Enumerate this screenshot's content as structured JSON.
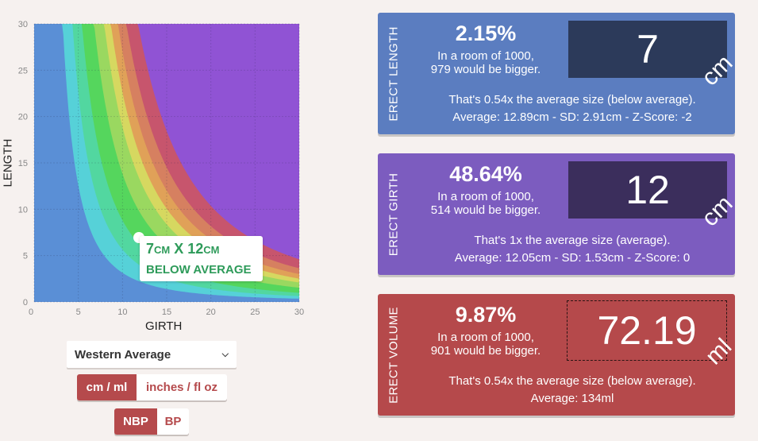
{
  "chart_data": {
    "type": "area",
    "x_ticks": [
      "0",
      "5",
      "10",
      "15",
      "20",
      "25",
      "30"
    ],
    "y_ticks": [
      "0",
      "5",
      "10",
      "15",
      "20",
      "25",
      "30"
    ],
    "xlabel": "GIRTH",
    "ylabel": "LENGTH",
    "xlim": [
      0,
      30
    ],
    "ylim": [
      0,
      30
    ],
    "grid": true,
    "bands": [
      {
        "color": "#5a8fd6",
        "volume_min": 0
      },
      {
        "color": "#56d1d8",
        "volume_min": 25
      },
      {
        "color": "#52d7a0",
        "volume_min": 45
      },
      {
        "color": "#55d65d",
        "volume_min": 70
      },
      {
        "color": "#9ad860",
        "volume_min": 110
      },
      {
        "color": "#d6d860",
        "volume_min": 150
      },
      {
        "color": "#e0a158",
        "volume_min": 180
      },
      {
        "color": "#d68060",
        "volume_min": 215
      },
      {
        "color": "#c7556d",
        "volume_min": 260
      },
      {
        "color": "#9053d4",
        "volume_min": 330
      }
    ],
    "point": {
      "girth": 12,
      "length": 7
    },
    "tooltip": {
      "size_prefix": "7",
      "size_unit1": "CM",
      "size_sep": " X ",
      "size_value2": "12",
      "size_unit2": "CM",
      "rating": "BELOW AVERAGE"
    }
  },
  "controls": {
    "population_select": "Western Average",
    "unit_toggle": {
      "selected": "cm / ml",
      "other": "inches / fl oz"
    },
    "bp_toggle": {
      "selected": "NBP",
      "other": "BP"
    }
  },
  "cards": {
    "length": {
      "side_label": "ERECT LENGTH",
      "percentile": "2.15%",
      "room_line1": "In a room of 1000,",
      "room_line2": "979 would be bigger.",
      "value": "7",
      "unit": "cm",
      "comparison": "That's 0.54x the average size (below average).",
      "stats": "Average: 12.89cm - SD: 2.91cm - Z-Score: -2",
      "color": "#5b7dc0",
      "box_color": "#2c3a5a"
    },
    "girth": {
      "side_label": "ERECT GIRTH",
      "percentile": "48.64%",
      "room_line1": "In a room of 1000,",
      "room_line2": "514 would be bigger.",
      "value": "12",
      "unit": "cm",
      "comparison": "That's 1x the average size (average).",
      "stats": "Average: 12.05cm - SD: 1.53cm - Z-Score: 0",
      "color": "#7c5cbf",
      "box_color": "#3b2e5c"
    },
    "volume": {
      "side_label": "ERECT VOLUME",
      "percentile": "9.87%",
      "room_line1": "In a room of 1000,",
      "room_line2": "901 would be bigger.",
      "value": "72.19",
      "unit": "ml",
      "comparison": "That's 0.54x the average size (below average).",
      "stats": "Average: 134ml",
      "color": "#b5494b"
    }
  }
}
